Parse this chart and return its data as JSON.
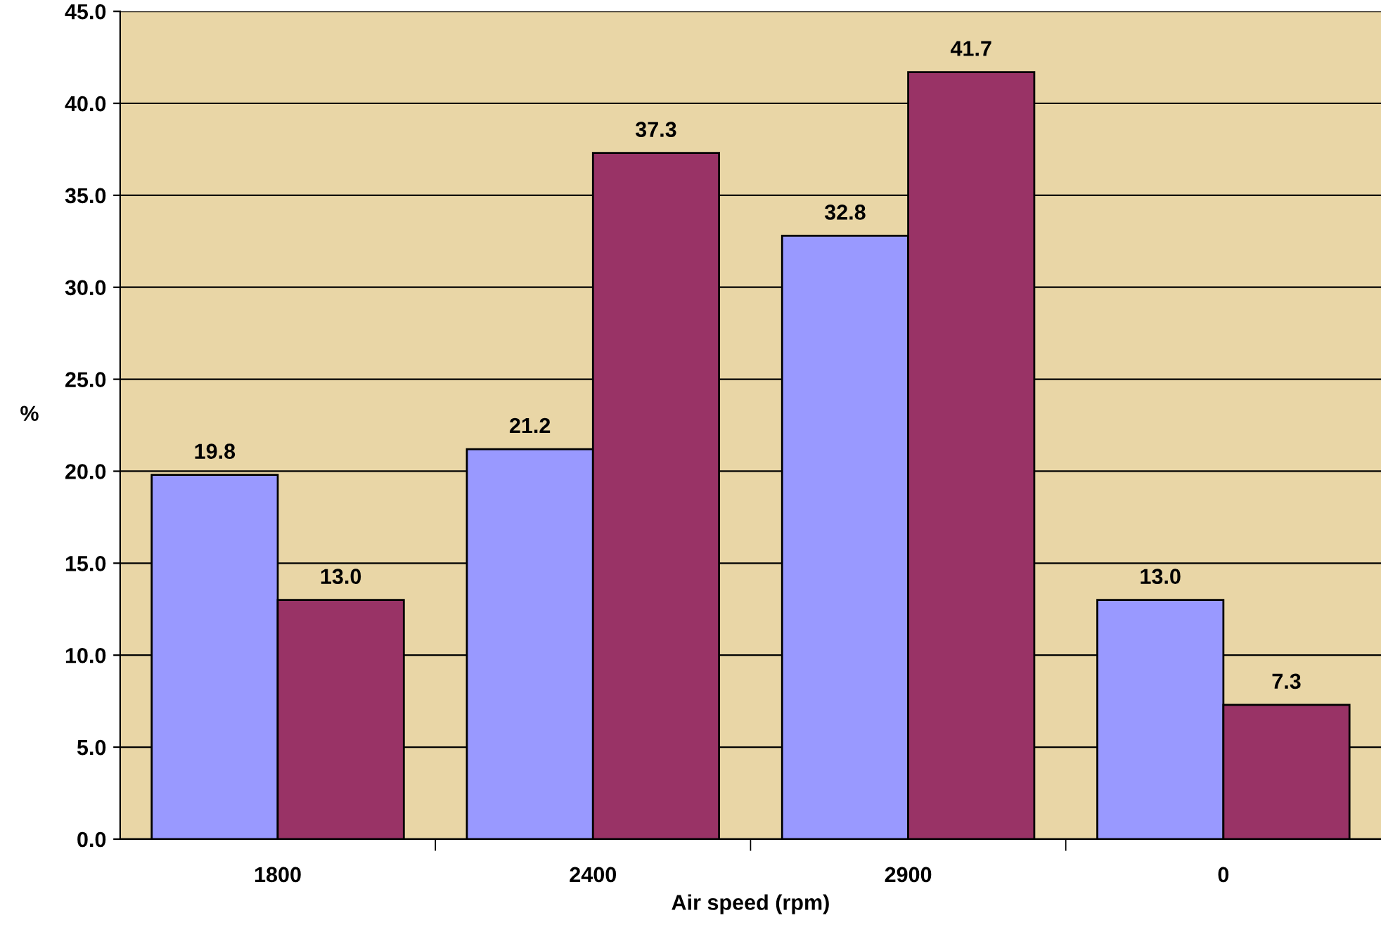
{
  "chart_data": {
    "type": "bar",
    "xlabel": "Air speed (rpm)",
    "ylabel": "%",
    "categories": [
      "1800",
      "2400",
      "2900",
      "0"
    ],
    "series": [
      {
        "color": "#9999ff",
        "values": [
          19.8,
          21.2,
          32.8,
          13.0
        ],
        "value_labels": [
          "19.8",
          "21.2",
          "32.8",
          "13.0"
        ]
      },
      {
        "color": "#993366",
        "values": [
          13.0,
          37.3,
          41.7,
          7.3
        ],
        "value_labels": [
          "13.0",
          "37.3",
          "41.7",
          "7.3"
        ]
      }
    ],
    "ylim": [
      0,
      45
    ],
    "yticks": [
      {
        "value": 0,
        "label": "0.0"
      },
      {
        "value": 5,
        "label": "5.0"
      },
      {
        "value": 10,
        "label": "10.0"
      },
      {
        "value": 15,
        "label": "15.0"
      },
      {
        "value": 20,
        "label": "20.0"
      },
      {
        "value": 25,
        "label": "25.0"
      },
      {
        "value": 30,
        "label": "30.0"
      },
      {
        "value": 35,
        "label": "35.0"
      },
      {
        "value": 40,
        "label": "40.0"
      },
      {
        "value": 45,
        "label": "45.0"
      }
    ],
    "grid": "y"
  }
}
